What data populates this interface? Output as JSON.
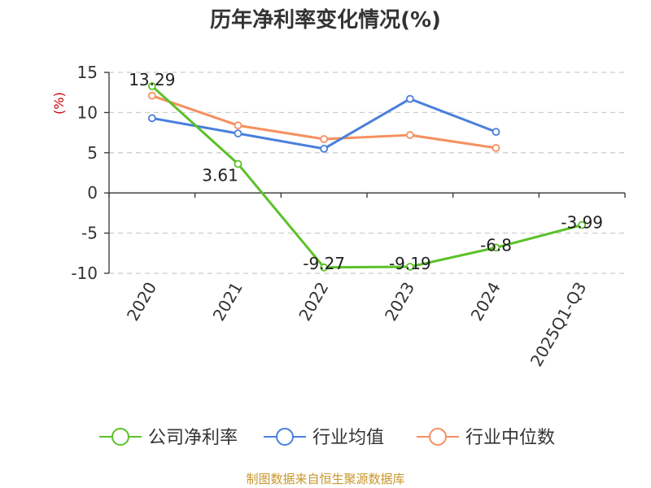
{
  "chart_data": {
    "type": "line",
    "title": "历年净利率变化情况(%)",
    "ylabel": "(%)",
    "categories": [
      "2020",
      "2021",
      "2022",
      "2023",
      "2024",
      "2025Q1-Q3"
    ],
    "ylim": [
      -10,
      15
    ],
    "yticks": [
      "15",
      "10",
      "5",
      "0",
      "-5",
      "-10"
    ],
    "ytick_values": [
      15,
      10,
      5,
      0,
      -5,
      -10
    ],
    "grid": true,
    "legend_position": "bottom",
    "series": [
      {
        "name": "公司净利率",
        "color": "#5cc12a",
        "values": [
          13.29,
          3.61,
          -9.27,
          -9.19,
          -6.8,
          -3.99
        ],
        "labels": [
          "13.29",
          "3.61",
          "-9.27",
          "-9.19",
          "-6.8",
          "-3.99"
        ]
      },
      {
        "name": "行业均值",
        "color": "#4a7fdc",
        "values": [
          9.3,
          7.4,
          5.5,
          11.7,
          7.6,
          null
        ]
      },
      {
        "name": "行业中位数",
        "color": "#f59060",
        "values": [
          12.1,
          8.4,
          6.7,
          7.2,
          5.6,
          null
        ]
      }
    ]
  },
  "footer": "制图数据来自恒生聚源数据库"
}
